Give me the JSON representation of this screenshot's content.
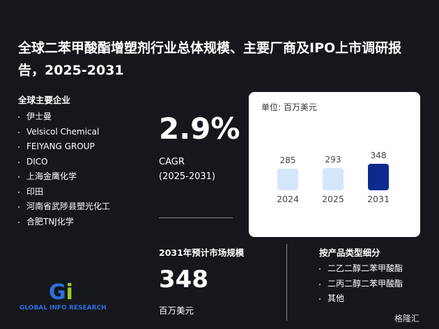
{
  "header": {
    "title": "全球二苯甲酸酯增塑剂行业总体规模、主要厂商及IPO上市调研报告，2025-2031"
  },
  "companies": {
    "heading": "全球主要企业",
    "items": [
      "伊士曼",
      "Velsicol Chemical",
      "FEIYANG GROUP",
      "DICO",
      "上海金鹰化学",
      "印田",
      "河南省武陟县塑光化工",
      "合肥TNJ化学"
    ]
  },
  "growth": {
    "value": "2.9%",
    "label": "CAGR",
    "period": "(2025-2031)"
  },
  "market": {
    "heading": "2031年预计市场规模",
    "value": "348",
    "unit": "百万美元"
  },
  "segments": {
    "heading": "按产品类型细分",
    "items": [
      "二乙二醇二苯甲酸酯",
      "二丙二醇二苯甲酸酯",
      "其他"
    ]
  },
  "logo": {
    "text": "GLOBAL INFO RESEARCH",
    "watermark": "格隆汇"
  },
  "chart_data": {
    "type": "bar",
    "subtitle": "单位: 百万美元",
    "categories": [
      "2024",
      "2025",
      "2031"
    ],
    "values": [
      285,
      293,
      348
    ],
    "colors": [
      "#d4e6fa",
      "#d4e6fa",
      "#0d2b8c"
    ]
  }
}
